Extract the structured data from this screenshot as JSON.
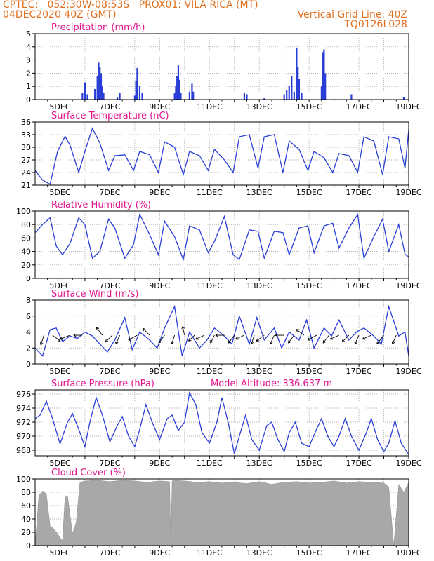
{
  "header": {
    "left_line1": "CPTEC:   052:30W-08:53S   PROX01: VILA RICA (MT)",
    "left_line2": "04DEC2020 40Z (GMT)",
    "right_line2": "Vertical Grid Line: 40Z",
    "right_line3": "TQ0126L028"
  },
  "colors": {
    "header": "#e07020",
    "panel_title": "#e0148c",
    "series": "#2a3fd6",
    "cloud": "#a8a8a8"
  },
  "chart_data": [
    {
      "type": "bar",
      "title": "Precipitation (mm/h)",
      "ylim": [
        0,
        5
      ],
      "yticks": [
        0,
        1,
        2,
        3,
        4,
        5
      ],
      "xlabels": [
        "5DEC",
        "7DEC",
        "9DEC",
        "11DEC",
        "13DEC",
        "15DEC",
        "17DEC",
        "19DEC"
      ],
      "x": [
        5.9,
        6.0,
        6.1,
        6.4,
        6.5,
        6.55,
        6.6,
        6.65,
        6.7,
        6.75,
        7.3,
        7.4,
        8.0,
        8.05,
        8.1,
        8.2,
        8.3,
        9.6,
        9.65,
        9.7,
        9.75,
        9.8,
        9.85,
        10.2,
        10.3,
        10.35,
        12.4,
        12.5,
        13.2,
        14.0,
        14.1,
        14.2,
        14.3,
        14.4,
        14.5,
        14.55,
        14.6,
        14.7,
        15.5,
        15.55,
        15.6,
        15.65,
        16.7,
        18.8
      ],
      "values": [
        0.5,
        1.3,
        0.4,
        0.8,
        1.8,
        2.8,
        2.5,
        2.0,
        1.0,
        0.5,
        0.2,
        0.5,
        0.3,
        1.4,
        2.4,
        1.0,
        0.5,
        0.5,
        1.0,
        1.8,
        2.6,
        1.5,
        0.5,
        0.6,
        1.2,
        0.6,
        0.5,
        0.4,
        0.1,
        0.4,
        0.7,
        1.0,
        1.8,
        0.6,
        3.9,
        2.5,
        1.6,
        0.5,
        1.0,
        3.6,
        3.8,
        2.0,
        0.4,
        0.2
      ]
    },
    {
      "type": "line",
      "title": "Surface Temperature (nC)",
      "ylim": [
        21,
        36
      ],
      "yticks": [
        21,
        24,
        27,
        30,
        33,
        36
      ],
      "xlabels": [
        "5DEC",
        "7DEC",
        "9DEC",
        "11DEC",
        "13DEC",
        "15DEC",
        "17DEC",
        "19DEC"
      ],
      "x": [
        4.0,
        4.3,
        4.6,
        4.9,
        5.2,
        5.4,
        5.75,
        6.0,
        6.3,
        6.6,
        6.95,
        7.2,
        7.6,
        7.95,
        8.2,
        8.6,
        8.95,
        9.2,
        9.6,
        9.95,
        10.2,
        10.6,
        10.95,
        11.2,
        11.6,
        11.95,
        12.2,
        12.6,
        12.95,
        13.2,
        13.6,
        13.95,
        14.2,
        14.6,
        14.95,
        15.2,
        15.6,
        15.95,
        16.2,
        16.6,
        16.95,
        17.2,
        17.6,
        17.95,
        18.2,
        18.6,
        18.85,
        19.0
      ],
      "values": [
        24.5,
        22.2,
        21.2,
        29.0,
        32.6,
        30.5,
        24.0,
        29.0,
        34.5,
        31.0,
        24.5,
        28.0,
        28.2,
        24.5,
        29.0,
        28.2,
        24.0,
        31.3,
        30.0,
        23.5,
        29.0,
        28.0,
        24.5,
        29.5,
        27.0,
        24.0,
        32.5,
        33.0,
        25.0,
        32.5,
        33.0,
        24.0,
        31.5,
        29.5,
        24.5,
        29.0,
        27.5,
        24.0,
        28.5,
        28.0,
        24.0,
        32.5,
        31.5,
        23.5,
        32.5,
        32.0,
        25.0,
        34.0
      ]
    },
    {
      "type": "line",
      "title": "Relative Humidity (%)",
      "ylim": [
        0,
        100
      ],
      "yticks": [
        0,
        20,
        40,
        60,
        80,
        100
      ],
      "xlabels": [
        "5DEC",
        "7DEC",
        "9DEC",
        "11DEC",
        "13DEC",
        "15DEC",
        "17DEC",
        "19DEC"
      ],
      "x": [
        4.0,
        4.3,
        4.6,
        4.85,
        5.1,
        5.4,
        5.75,
        6.0,
        6.3,
        6.6,
        6.95,
        7.2,
        7.6,
        7.95,
        8.2,
        8.6,
        8.95,
        9.2,
        9.6,
        9.95,
        10.2,
        10.6,
        10.95,
        11.2,
        11.6,
        11.95,
        12.2,
        12.6,
        12.95,
        13.2,
        13.6,
        13.95,
        14.2,
        14.6,
        14.95,
        15.2,
        15.6,
        15.95,
        16.2,
        16.6,
        16.95,
        17.2,
        17.6,
        17.95,
        18.2,
        18.6,
        18.85,
        19.0
      ],
      "values": [
        68,
        80,
        90,
        48,
        35,
        52,
        90,
        80,
        30,
        40,
        88,
        75,
        30,
        50,
        95,
        65,
        35,
        85,
        62,
        28,
        78,
        72,
        38,
        55,
        92,
        35,
        28,
        72,
        70,
        30,
        70,
        68,
        35,
        75,
        78,
        38,
        78,
        82,
        45,
        75,
        95,
        30,
        62,
        88,
        40,
        80,
        36,
        32
      ]
    },
    {
      "type": "line",
      "title": "Surface Wind (m/s)",
      "ylim": [
        0,
        8
      ],
      "yticks": [
        0,
        2,
        4,
        6,
        8
      ],
      "xlabels": [
        "5DEC",
        "7DEC",
        "9DEC",
        "11DEC",
        "13DEC",
        "15DEC",
        "17DEC",
        "19DEC"
      ],
      "x": [
        4.0,
        4.3,
        4.6,
        4.85,
        5.1,
        5.4,
        5.7,
        6.0,
        6.3,
        6.6,
        6.9,
        7.2,
        7.6,
        7.9,
        8.2,
        8.6,
        8.9,
        9.2,
        9.6,
        9.9,
        10.2,
        10.6,
        10.9,
        11.2,
        11.6,
        11.9,
        12.2,
        12.6,
        12.9,
        13.2,
        13.6,
        13.9,
        14.2,
        14.6,
        14.9,
        15.2,
        15.6,
        15.9,
        16.2,
        16.6,
        16.9,
        17.2,
        17.6,
        17.9,
        18.2,
        18.6,
        18.85,
        19.0
      ],
      "values": [
        2.0,
        1.0,
        4.3,
        4.5,
        2.8,
        3.5,
        3.2,
        4.0,
        3.5,
        2.5,
        1.5,
        3.0,
        5.8,
        1.8,
        4.0,
        3.0,
        2.0,
        4.5,
        7.2,
        1.0,
        4.0,
        2.0,
        3.0,
        4.5,
        3.5,
        2.5,
        6.0,
        2.5,
        5.8,
        3.0,
        4.5,
        2.0,
        4.0,
        3.0,
        5.5,
        2.0,
        4.5,
        3.5,
        5.5,
        3.0,
        4.0,
        4.5,
        3.5,
        2.5,
        7.2,
        3.5,
        4.0,
        1.0
      ],
      "arrows": [
        {
          "x": 4.35,
          "u": -0.3,
          "v": -1.0
        },
        {
          "x": 4.7,
          "u": 0.8,
          "v": -0.6
        },
        {
          "x": 5.4,
          "u": -1.0,
          "v": -0.4
        },
        {
          "x": 5.9,
          "u": -0.9,
          "v": 0.0
        },
        {
          "x": 6.7,
          "u": -0.6,
          "v": 0.8
        },
        {
          "x": 7.1,
          "u": -0.7,
          "v": -0.7
        },
        {
          "x": 7.4,
          "u": -0.4,
          "v": -0.9
        },
        {
          "x": 8.1,
          "u": -0.9,
          "v": -0.5
        },
        {
          "x": 8.6,
          "u": -0.7,
          "v": 0.7
        },
        {
          "x": 9.2,
          "u": -0.6,
          "v": -0.8
        },
        {
          "x": 9.6,
          "u": -0.3,
          "v": -0.9
        },
        {
          "x": 10.0,
          "u": -0.2,
          "v": 0.9
        },
        {
          "x": 10.4,
          "u": -0.6,
          "v": -0.6
        },
        {
          "x": 10.8,
          "u": -0.9,
          "v": -0.4
        },
        {
          "x": 11.2,
          "u": -0.4,
          "v": -0.8
        },
        {
          "x": 11.6,
          "u": -0.9,
          "v": 0.0
        },
        {
          "x": 12.0,
          "u": -0.6,
          "v": -0.8
        },
        {
          "x": 12.4,
          "u": -0.9,
          "v": -0.4
        },
        {
          "x": 12.8,
          "u": -0.3,
          "v": -0.9
        },
        {
          "x": 13.2,
          "u": -0.8,
          "v": -0.6
        },
        {
          "x": 13.6,
          "u": -0.4,
          "v": -0.9
        },
        {
          "x": 14.0,
          "u": -0.9,
          "v": 0.0
        },
        {
          "x": 14.4,
          "u": -0.6,
          "v": -0.8
        },
        {
          "x": 14.8,
          "u": -0.8,
          "v": 0.6
        },
        {
          "x": 15.3,
          "u": -0.9,
          "v": -0.5
        },
        {
          "x": 15.8,
          "u": -0.6,
          "v": -0.8
        },
        {
          "x": 16.2,
          "u": -0.9,
          "v": -0.4
        },
        {
          "x": 16.6,
          "u": -0.7,
          "v": -0.7
        },
        {
          "x": 17.0,
          "u": -0.4,
          "v": -0.9
        },
        {
          "x": 17.5,
          "u": -0.9,
          "v": -0.4
        },
        {
          "x": 18.0,
          "u": -0.7,
          "v": -0.9
        },
        {
          "x": 18.5,
          "u": -0.4,
          "v": -0.9
        }
      ]
    },
    {
      "type": "line",
      "title": "Surface Pressure (hPa)",
      "subtitle": "Model Altitude: 336.637 m",
      "ylim": [
        967.2,
        976.6
      ],
      "yticks": [
        968,
        970,
        972,
        974,
        976
      ],
      "xlabels": [
        "5DEC",
        "7DEC",
        "9DEC",
        "11DEC",
        "13DEC",
        "15DEC",
        "17DEC",
        "19DEC"
      ],
      "x": [
        4.0,
        4.2,
        4.45,
        4.7,
        5.0,
        5.3,
        5.5,
        5.75,
        6.0,
        6.2,
        6.45,
        6.7,
        7.0,
        7.3,
        7.5,
        7.75,
        8.0,
        8.2,
        8.45,
        8.7,
        9.0,
        9.3,
        9.5,
        9.75,
        10.0,
        10.2,
        10.45,
        10.7,
        11.0,
        11.3,
        11.5,
        11.75,
        12.0,
        12.2,
        12.45,
        12.7,
        13.0,
        13.3,
        13.5,
        13.75,
        14.0,
        14.2,
        14.45,
        14.7,
        15.0,
        15.3,
        15.5,
        15.75,
        16.0,
        16.2,
        16.45,
        16.7,
        17.0,
        17.3,
        17.5,
        17.75,
        18.0,
        18.2,
        18.45,
        18.7,
        19.0
      ],
      "values": [
        972.5,
        973.0,
        975.0,
        972.5,
        968.9,
        972.0,
        973.2,
        971.0,
        968.5,
        972.0,
        975.5,
        973.0,
        969.2,
        971.5,
        972.8,
        970.0,
        968.5,
        971.0,
        974.5,
        972.0,
        969.5,
        972.5,
        973.0,
        970.8,
        972.0,
        976.2,
        974.5,
        970.5,
        969.0,
        972.0,
        975.5,
        972.0,
        967.5,
        970.0,
        973.0,
        969.5,
        968.0,
        971.5,
        972.0,
        969.5,
        967.8,
        970.5,
        972.0,
        969.0,
        968.5,
        971.0,
        972.5,
        970.0,
        968.5,
        970.0,
        972.5,
        970.0,
        968.0,
        970.5,
        972.5,
        969.5,
        967.8,
        969.0,
        972.2,
        969.0,
        967.4
      ]
    },
    {
      "type": "area",
      "title": "Cloud Cover (%)",
      "ylim": [
        0,
        100
      ],
      "yticks": [
        0,
        20,
        40,
        60,
        80,
        100
      ],
      "xlabels": [
        "5DEC",
        "7DEC",
        "9DEC",
        "11DEC",
        "13DEC",
        "15DEC",
        "17DEC",
        "19DEC"
      ],
      "x": [
        4.0,
        4.15,
        4.3,
        4.45,
        4.6,
        4.75,
        4.9,
        5.0,
        5.1,
        5.2,
        5.3,
        5.5,
        5.65,
        5.8,
        6.0,
        6.5,
        7.0,
        7.5,
        8.0,
        8.5,
        9.0,
        9.4,
        9.45,
        9.5,
        9.55,
        10.0,
        10.5,
        11.0,
        11.5,
        12.0,
        12.5,
        13.0,
        13.5,
        14.0,
        14.5,
        15.0,
        15.5,
        16.0,
        16.5,
        17.0,
        17.5,
        18.0,
        18.2,
        18.4,
        18.6,
        18.8,
        19.0
      ],
      "values": [
        0,
        75,
        82,
        78,
        30,
        25,
        18,
        12,
        8,
        72,
        75,
        18,
        35,
        95,
        97,
        98,
        96,
        98,
        97,
        95,
        97,
        96,
        0,
        97,
        98,
        97,
        95,
        96,
        94,
        95,
        93,
        96,
        92,
        95,
        96,
        94,
        95,
        97,
        94,
        96,
        95,
        94,
        88,
        0,
        92,
        80,
        95
      ]
    }
  ]
}
